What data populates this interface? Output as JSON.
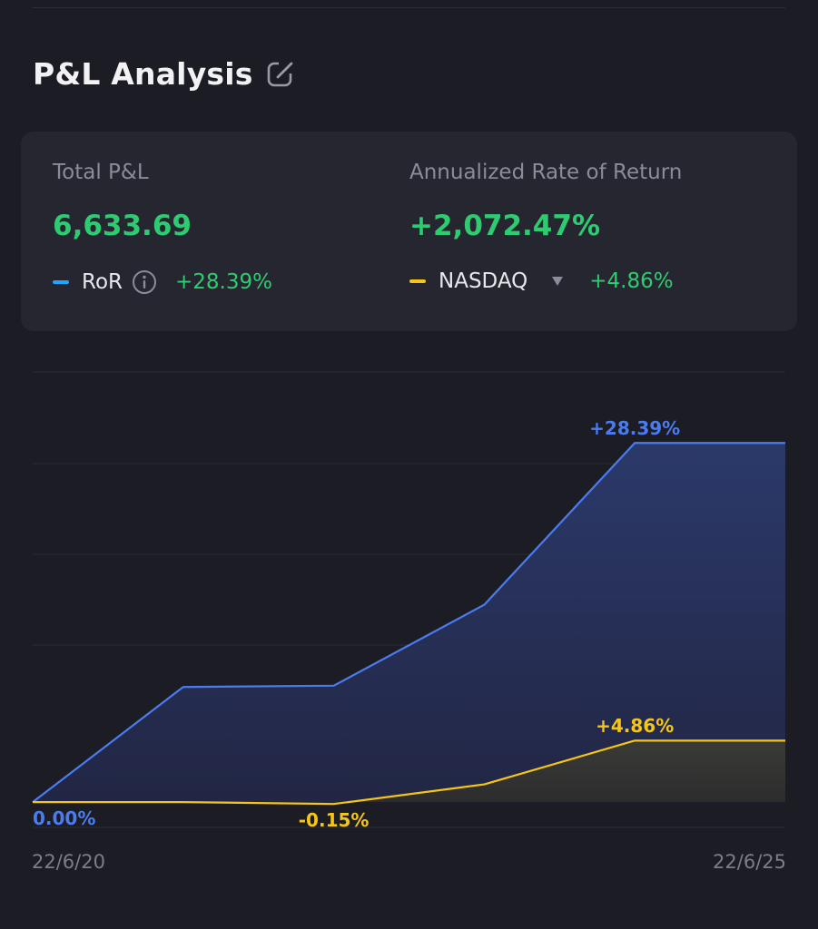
{
  "header": {
    "title": "P&L Analysis",
    "edit_icon": "edit-icon"
  },
  "summary": {
    "total_pnl_label": "Total P&L",
    "total_pnl_value": "6,633.69",
    "annualized_label": "Annualized Rate of Return",
    "annualized_value": "+2,072.47%",
    "ror_legend": {
      "name": "RoR",
      "value": "+28.39%",
      "color": "#1ea7ff",
      "icon": "info-icon"
    },
    "benchmark_legend": {
      "name": "NASDAQ",
      "value": "+4.86%",
      "color": "#f5c518",
      "icon": "caret-down-icon"
    }
  },
  "colors": {
    "background": "#1c1c24",
    "card": "#262630",
    "positive": "#2ecc71",
    "ror_line": "#4a7cf0",
    "nasdaq_line": "#f5c518"
  },
  "chart_data": {
    "type": "area",
    "x_labels": [
      "22/6/20",
      "22/6/25"
    ],
    "x": [
      "22/6/20",
      "22/6/21",
      "22/6/22",
      "22/6/23",
      "22/6/24",
      "22/6/25"
    ],
    "ylim": [
      -2,
      34
    ],
    "grid": true,
    "series": [
      {
        "name": "RoR",
        "values": [
          0.0,
          9.1,
          9.2,
          15.6,
          28.39,
          28.39
        ],
        "color": "#4a7cf0"
      },
      {
        "name": "NASDAQ",
        "values": [
          0.0,
          0.0,
          -0.15,
          1.4,
          4.86,
          4.86
        ],
        "color": "#f5c518"
      }
    ],
    "annotations": [
      {
        "text": "0.00%",
        "series": 0,
        "index": 0,
        "color": "#4a7cf0"
      },
      {
        "text": "-0.15%",
        "series": 1,
        "index": 2,
        "color": "#f5c518"
      },
      {
        "text": "+28.39%",
        "series": 0,
        "index": 4,
        "color": "#4a7cf0"
      },
      {
        "text": "+4.86%",
        "series": 1,
        "index": 4,
        "color": "#f5c518"
      }
    ]
  }
}
